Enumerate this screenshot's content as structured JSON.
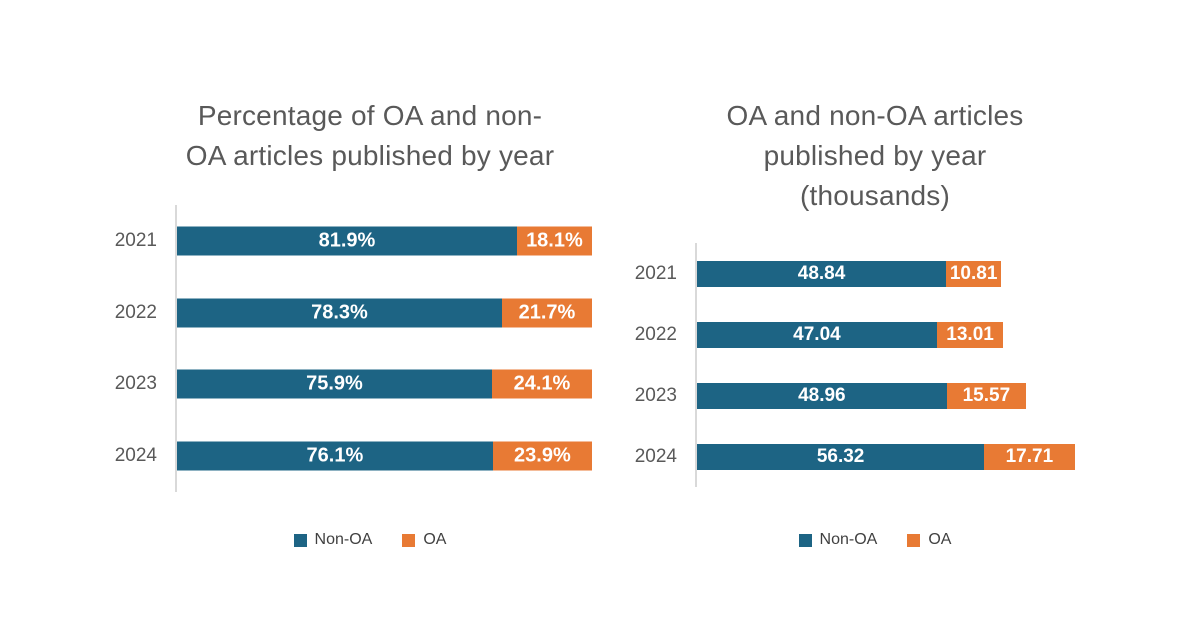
{
  "colors": {
    "non_oa": "#1D6484",
    "oa": "#E87A34",
    "title_text": "#595959",
    "category_text": "#595959",
    "legend_text": "#404040",
    "value_label_text": "#FFFFFF",
    "axis_line": "#D9D9D9",
    "background": "#FFFFFF"
  },
  "chart_data": [
    {
      "type": "bar",
      "orientation": "horizontal",
      "stacked": true,
      "title": "Percentage of OA and non-OA articles published by year",
      "title_lines": [
        "Percentage of OA and non-",
        "OA articles published by year"
      ],
      "categories": [
        "2021",
        "2022",
        "2023",
        "2024"
      ],
      "series": [
        {
          "name": "Non-OA",
          "color": "non_oa",
          "values": [
            81.9,
            78.3,
            75.9,
            76.1
          ],
          "labels": [
            "81.9%",
            "78.3%",
            "75.9%",
            "76.1%"
          ]
        },
        {
          "name": "OA",
          "color": "oa",
          "values": [
            18.1,
            21.7,
            24.1,
            23.9
          ],
          "labels": [
            "18.1%",
            "21.7%",
            "24.1%",
            "23.9%"
          ]
        }
      ],
      "xlim": [
        0,
        100
      ],
      "xlabel": "",
      "ylabel": "",
      "grid": false,
      "legend_position": "bottom",
      "legend": [
        "Non-OA",
        "OA"
      ]
    },
    {
      "type": "bar",
      "orientation": "horizontal",
      "stacked": true,
      "title": "OA and non-OA articles published by year (thousands)",
      "title_lines": [
        "OA and non-OA articles",
        "published by year",
        "(thousands)"
      ],
      "categories": [
        "2021",
        "2022",
        "2023",
        "2024"
      ],
      "series": [
        {
          "name": "Non-OA",
          "color": "non_oa",
          "values": [
            48.84,
            47.04,
            48.96,
            56.32
          ],
          "labels": [
            "48.84",
            "47.04",
            "48.96",
            "56.32"
          ]
        },
        {
          "name": "OA",
          "color": "oa",
          "values": [
            10.81,
            13.01,
            15.57,
            17.71
          ],
          "labels": [
            "10.81",
            "13.01",
            "15.57",
            "17.71"
          ]
        }
      ],
      "xlim": [
        0,
        80
      ],
      "xlabel": "",
      "ylabel": "",
      "grid": false,
      "legend_position": "bottom",
      "legend": [
        "Non-OA",
        "OA"
      ]
    }
  ]
}
